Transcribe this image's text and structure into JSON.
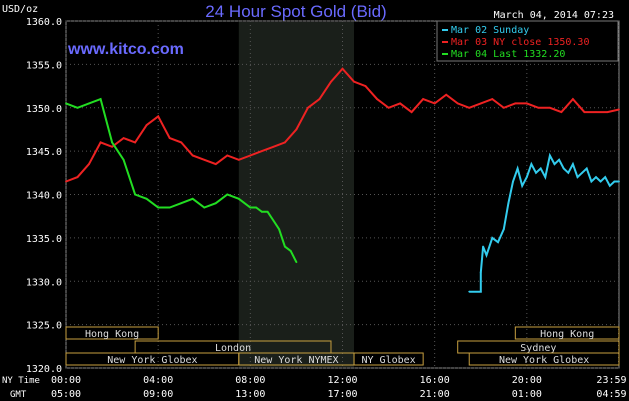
{
  "chart_data": {
    "type": "line",
    "title": "24 Hour Spot Gold (Bid)",
    "site": "www.kitco.com",
    "date_label": "March 04, 2014 07:23",
    "ylabel": "USD/oz",
    "ylim": [
      1320,
      1360
    ],
    "y_ticks": [
      "1360.0",
      "1355.0",
      "1350.0",
      "1345.0",
      "1340.0",
      "1335.0",
      "1330.0",
      "1325.0",
      "1320.0"
    ],
    "y_tick_values": [
      1360,
      1355,
      1350,
      1345,
      1340,
      1335,
      1330,
      1325,
      1320
    ],
    "x_ticks_ny": [
      "00:00",
      "04:00",
      "08:00",
      "12:00",
      "16:00",
      "20:00",
      "23:59"
    ],
    "x_ticks_gmt": [
      "05:00",
      "09:00",
      "13:00",
      "17:00",
      "21:00",
      "01:00",
      "04:59"
    ],
    "x_tick_hours": [
      0,
      4,
      8,
      12,
      16,
      20,
      23.98
    ],
    "x_row_labels": [
      "NY Time",
      "GMT"
    ],
    "shaded_range_hours": [
      7.5,
      12.5
    ],
    "sessions": [
      {
        "name": "Hong Kong",
        "row": 0,
        "start": 0,
        "end": 4
      },
      {
        "name": "Hong Kong",
        "row": 0,
        "start": 19.5,
        "end": 24
      },
      {
        "name": "London",
        "row": 1,
        "start": 3,
        "end": 11.5
      },
      {
        "name": "Sydney",
        "row": 1,
        "start": 17,
        "end": 24
      },
      {
        "name": "New York Globex",
        "row": 2,
        "start": 0,
        "end": 7.5
      },
      {
        "name": "New York NYMEX",
        "row": 2,
        "start": 7.5,
        "end": 12.5
      },
      {
        "name": "NY Globex",
        "row": 2,
        "start": 12.5,
        "end": 15.5
      },
      {
        "name": "New York Globex",
        "row": 2,
        "start": 17.5,
        "end": 24
      }
    ],
    "legend": [
      {
        "label": "Mar 02 Sunday",
        "color": "#33ccee"
      },
      {
        "label": "Mar 03 NY close 1350.30",
        "color": "#ee2222"
      },
      {
        "label": "Mar 04 Last 1332.20",
        "color": "#22dd22"
      }
    ],
    "series": [
      {
        "name": "Mar 02 Sunday",
        "color": "#33ccee",
        "x": [
          17.5,
          18.0,
          18.0,
          18.1,
          18.25,
          18.5,
          18.75,
          19.0,
          19.2,
          19.4,
          19.6,
          19.8,
          20.0,
          20.2,
          20.4,
          20.6,
          20.8,
          21.0,
          21.2,
          21.4,
          21.6,
          21.8,
          22.0,
          22.2,
          22.4,
          22.6,
          22.8,
          23.0,
          23.2,
          23.4,
          23.6,
          23.8,
          24.0
        ],
        "y": [
          1328.8,
          1328.8,
          1331.0,
          1334.0,
          1333.0,
          1335.0,
          1334.5,
          1336.0,
          1339.0,
          1341.5,
          1343.0,
          1341.0,
          1342.0,
          1343.5,
          1342.5,
          1343.0,
          1342.0,
          1344.5,
          1343.5,
          1344.0,
          1343.0,
          1342.5,
          1343.5,
          1342.0,
          1342.5,
          1343.0,
          1341.5,
          1342.0,
          1341.5,
          1342.0,
          1341.0,
          1341.5,
          1341.5
        ]
      },
      {
        "name": "Mar 03 NY close 1350.30",
        "color": "#ee2222",
        "x": [
          0,
          0.5,
          1.0,
          1.5,
          2.0,
          2.5,
          3.0,
          3.5,
          4.0,
          4.5,
          5.0,
          5.5,
          6.0,
          6.5,
          7.0,
          7.5,
          8.0,
          8.5,
          9.0,
          9.5,
          10.0,
          10.5,
          11.0,
          11.5,
          12.0,
          12.5,
          13.0,
          13.5,
          14.0,
          14.5,
          15.0,
          15.5,
          16.0,
          16.5,
          17.0,
          17.5,
          18.0,
          18.5,
          19.0,
          19.5,
          20.0,
          20.5,
          21.0,
          21.5,
          22.0,
          22.5,
          23.0,
          23.5,
          24.0
        ],
        "y": [
          1341.5,
          1342.0,
          1343.5,
          1346.0,
          1345.5,
          1346.5,
          1346.0,
          1348.0,
          1349.0,
          1346.5,
          1346.0,
          1344.5,
          1344.0,
          1343.5,
          1344.5,
          1344.0,
          1344.5,
          1345.0,
          1345.5,
          1346.0,
          1347.5,
          1350.0,
          1351.0,
          1353.0,
          1354.5,
          1353.0,
          1352.5,
          1351.0,
          1350.0,
          1350.5,
          1349.5,
          1351.0,
          1350.5,
          1351.5,
          1350.5,
          1350.0,
          1350.5,
          1351.0,
          1350.0,
          1350.5,
          1350.5,
          1350.0,
          1350.0,
          1349.5,
          1351.0,
          1349.5,
          1349.5,
          1349.5,
          1349.8
        ]
      },
      {
        "name": "Mar 04 Last 1332.20",
        "color": "#22dd22",
        "x": [
          0,
          0.5,
          1.0,
          1.5,
          2.0,
          2.5,
          3.0,
          3.5,
          4.0,
          4.5,
          5.0,
          5.5,
          6.0,
          6.5,
          7.0,
          7.5,
          8.0,
          8.25,
          8.5,
          8.75,
          9.0,
          9.25,
          9.5,
          9.75,
          10.0
        ],
        "y": [
          1350.5,
          1350.0,
          1350.5,
          1351.0,
          1346.0,
          1344.0,
          1340.0,
          1339.5,
          1338.5,
          1338.5,
          1339.0,
          1339.5,
          1338.5,
          1339.0,
          1340.0,
          1339.5,
          1338.5,
          1338.5,
          1338.0,
          1338.0,
          1337.0,
          1336.0,
          1334.0,
          1333.5,
          1332.2
        ]
      }
    ]
  }
}
